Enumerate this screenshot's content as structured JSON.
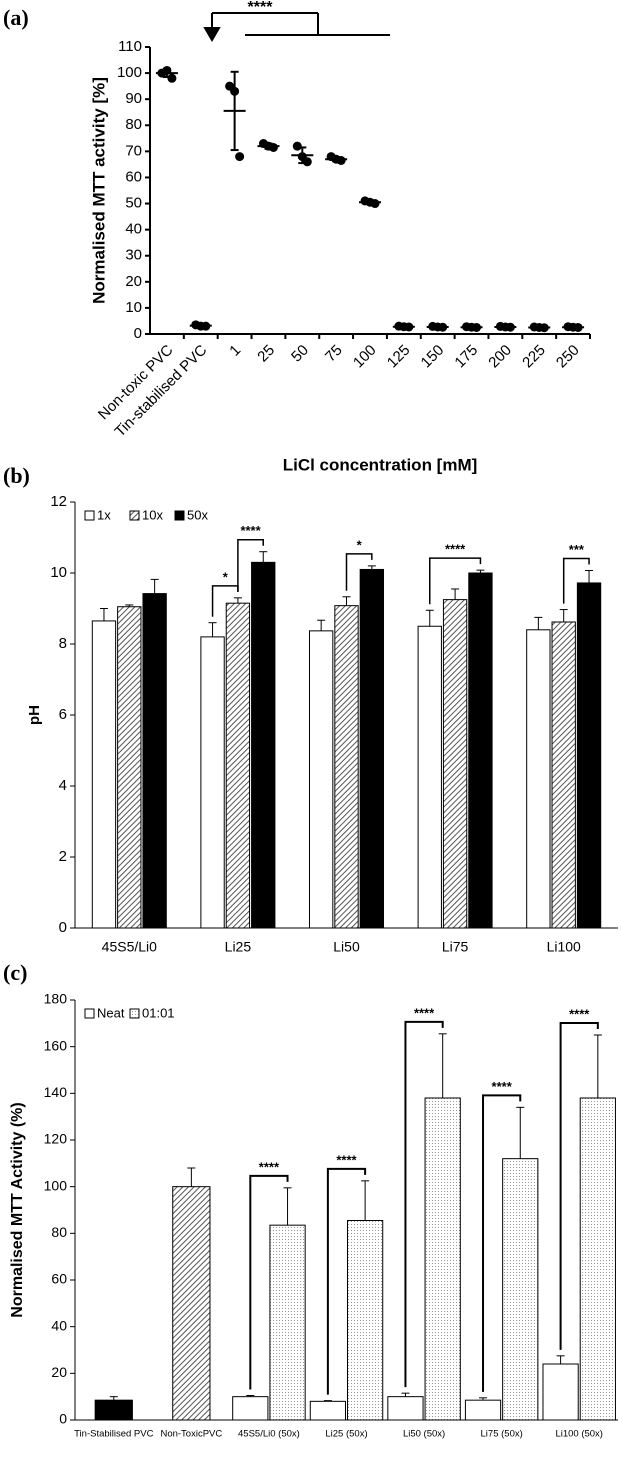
{
  "chart_data": [
    {
      "type": "dot",
      "panel": "(a)",
      "ylabel": "Normalised MTT activity [%]",
      "xlabel": "LiCl concentration [mM]",
      "annotation": "****",
      "categories": [
        "Non-toxic PVC",
        "Tin-stabilised PVC",
        "1",
        "25",
        "50",
        "75",
        "100",
        "125",
        "150",
        "175",
        "200",
        "225",
        "250"
      ],
      "values": [
        100,
        3.2,
        85.5,
        72,
        68.5,
        67,
        50.5,
        2.8,
        2.7,
        2.6,
        2.7,
        2.5,
        2.6
      ],
      "errors": [
        1.5,
        0.3,
        15,
        1,
        3,
        0.8,
        0.5,
        0.2,
        0.2,
        0.2,
        0.2,
        0.2,
        0.2
      ],
      "points": [
        [
          100,
          101,
          98
        ],
        [
          3.5,
          3,
          3
        ],
        [
          95,
          93,
          68
        ],
        [
          73,
          72,
          71.5
        ],
        [
          72,
          68,
          66
        ],
        [
          68,
          67,
          66.5
        ],
        [
          51,
          50.5,
          50
        ],
        [
          3,
          2.8,
          2.7
        ],
        [
          2.9,
          2.7,
          2.6
        ],
        [
          2.8,
          2.6,
          2.5
        ],
        [
          2.9,
          2.7,
          2.6
        ],
        [
          2.7,
          2.5,
          2.4
        ],
        [
          2.8,
          2.6,
          2.5
        ]
      ],
      "color": "#000000",
      "ylim": [
        0,
        110
      ],
      "yticks": [
        0,
        10,
        20,
        30,
        40,
        50,
        60,
        70,
        80,
        90,
        100,
        110
      ]
    },
    {
      "type": "bar",
      "panel": "(b)",
      "ylabel": "pH",
      "categories": [
        "45S5/Li0",
        "Li25",
        "Li50",
        "Li75",
        "Li100"
      ],
      "series": [
        {
          "name": "1x",
          "color": "#ffffff",
          "values": [
            8.65,
            8.2,
            8.37,
            8.5,
            8.4
          ],
          "errors": [
            0.35,
            0.4,
            0.3,
            0.45,
            0.35
          ]
        },
        {
          "name": "10x",
          "color": "#888888",
          "pattern": "hatch",
          "values": [
            9.05,
            9.15,
            9.08,
            9.25,
            8.62
          ],
          "errors": [
            0.05,
            0.15,
            0.25,
            0.3,
            0.35
          ]
        },
        {
          "name": "50x",
          "color": "#000000",
          "values": [
            9.42,
            10.3,
            10.1,
            10.0,
            9.72
          ],
          "errors": [
            0.4,
            0.3,
            0.1,
            0.08,
            0.35
          ]
        }
      ],
      "significance": [
        {
          "text": "*",
          "category": 1,
          "from": 0,
          "to": 1
        },
        {
          "text": "****",
          "category": 1,
          "from": 1,
          "to": 2
        },
        {
          "text": "*",
          "category": 2,
          "from": 1,
          "to": 2
        },
        {
          "text": "****",
          "category": 3,
          "from": 0,
          "to": 2
        },
        {
          "text": "***",
          "category": 4,
          "from": 1,
          "to": 2
        }
      ],
      "ylim": [
        0,
        12
      ],
      "yticks": [
        0,
        2,
        4,
        6,
        8,
        10,
        12
      ],
      "legend": "top-left"
    },
    {
      "type": "bar",
      "panel": "(c)",
      "ylabel": "Normalised MTT Activity (%)",
      "categories": [
        "Tin-Stabilised PVC",
        "Non-ToxicPVC",
        "45S5/Li0 (50x)",
        "Li25 (50x)",
        "Li50 (50x)",
        "Li75 (50x)",
        "Li100 (50x)"
      ],
      "control_values": [
        8.5,
        100,
        null,
        null,
        null,
        null,
        null
      ],
      "control_errors": [
        1.5,
        8,
        null,
        null,
        null,
        null,
        null
      ],
      "control_colors": [
        "#000000",
        "#888888"
      ],
      "control_patterns": [
        null,
        "hatch"
      ],
      "series": [
        {
          "name": "Neat",
          "color": "#ffffff",
          "values": [
            null,
            null,
            10,
            8,
            10,
            8.5,
            24
          ],
          "errors": [
            null,
            null,
            0.5,
            0.3,
            1.5,
            1,
            3.5
          ]
        },
        {
          "name": "01:01",
          "color": "#eeeeee",
          "pattern": "dots",
          "values": [
            null,
            null,
            83.5,
            85.5,
            138,
            112,
            138
          ],
          "errors": [
            null,
            null,
            16,
            17,
            27.5,
            22,
            27
          ]
        }
      ],
      "significance": [
        {
          "text": "****",
          "category": 2,
          "from": 0,
          "to": 1
        },
        {
          "text": "****",
          "category": 3,
          "from": 0,
          "to": 1
        },
        {
          "text": "****",
          "category": 4,
          "from": 0,
          "to": 1
        },
        {
          "text": "****",
          "category": 5,
          "from": 0,
          "to": 1
        },
        {
          "text": "****",
          "category": 6,
          "from": 0,
          "to": 1
        }
      ],
      "ylim": [
        0,
        180
      ],
      "yticks": [
        0,
        20,
        40,
        60,
        80,
        100,
        120,
        140,
        160,
        180
      ],
      "legend": "top-left"
    }
  ]
}
